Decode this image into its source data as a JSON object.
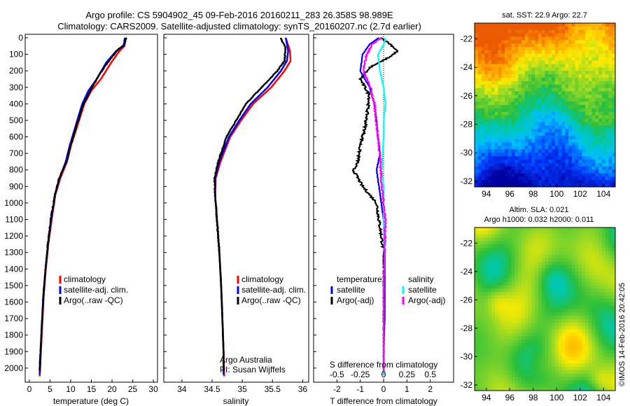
{
  "header": {
    "line1": "Argo profile: CS 5904902_45 09-Feb-2016 20160211_283 26.358S 98.989E",
    "line2": "Climatology: CARS2009. Satellite-adjusted climatology: synTS_20160207.nc (2.7d earlier)"
  },
  "colors": {
    "climatology": "#ff0000",
    "satellite": "#0000ff",
    "argo": "#000000",
    "sal_satellite": "#00ffff",
    "sal_argo": "#ff00ff"
  },
  "depth_ticks": [
    "0",
    "100",
    "200",
    "300",
    "400",
    "500",
    "600",
    "700",
    "800",
    "900",
    "1000",
    "1100",
    "1200",
    "1300",
    "1400",
    "1500",
    "1600",
    "1700",
    "1800",
    "1900",
    "2000"
  ],
  "chart_data": [
    {
      "type": "line",
      "xlabel": "temperature (deg C)",
      "ylabel": "",
      "xlim": [
        -1,
        31
      ],
      "ylim": [
        2060,
        0
      ],
      "xticks": [
        "0",
        "5",
        "10",
        "15",
        "20",
        "25",
        "30"
      ],
      "legend": [
        "climatology",
        "satellite-adj. clim.",
        "Argo(..raw -QC)"
      ],
      "series": [
        {
          "name": "climatology",
          "points": [
            [
              23.3,
              0
            ],
            [
              23.0,
              50
            ],
            [
              21.8,
              80
            ],
            [
              19.8,
              150
            ],
            [
              17.3,
              250
            ],
            [
              15.0,
              320
            ],
            [
              13.3,
              400
            ],
            [
              11.4,
              550
            ],
            [
              10.1,
              650
            ],
            [
              9.1,
              750
            ],
            [
              7.5,
              850
            ],
            [
              6.3,
              950
            ],
            [
              5.4,
              1100
            ],
            [
              4.6,
              1250
            ],
            [
              4.0,
              1400
            ],
            [
              3.5,
              1550
            ],
            [
              3.2,
              1700
            ],
            [
              2.9,
              1850
            ],
            [
              2.6,
              2000
            ],
            [
              2.5,
              2050
            ]
          ]
        },
        {
          "name": "satellite-adj. clim.",
          "points": [
            [
              23.1,
              0
            ],
            [
              22.8,
              50
            ],
            [
              21.0,
              80
            ],
            [
              18.6,
              150
            ],
            [
              16.3,
              250
            ],
            [
              14.3,
              320
            ],
            [
              12.8,
              400
            ],
            [
              11.0,
              550
            ],
            [
              9.8,
              650
            ],
            [
              8.8,
              750
            ],
            [
              7.3,
              850
            ],
            [
              6.2,
              950
            ],
            [
              5.3,
              1100
            ],
            [
              4.5,
              1250
            ],
            [
              3.9,
              1400
            ],
            [
              3.5,
              1550
            ],
            [
              3.1,
              1700
            ],
            [
              2.8,
              1850
            ],
            [
              2.6,
              2000
            ],
            [
              2.5,
              2040
            ]
          ]
        },
        {
          "name": "Argo(..raw -QC)",
          "points": [
            [
              23.4,
              0
            ],
            [
              23.0,
              40
            ],
            [
              21.5,
              70
            ],
            [
              19.5,
              130
            ],
            [
              17.0,
              220
            ],
            [
              15.2,
              300
            ],
            [
              13.1,
              400
            ],
            [
              11.2,
              550
            ],
            [
              10.0,
              650
            ],
            [
              9.0,
              750
            ],
            [
              7.2,
              850
            ],
            [
              6.2,
              950
            ],
            [
              5.2,
              1100
            ],
            [
              4.5,
              1250
            ],
            [
              3.9,
              1400
            ],
            [
              3.4,
              1550
            ],
            [
              3.1,
              1700
            ],
            [
              2.8,
              1850
            ],
            [
              2.5,
              2000
            ],
            [
              2.5,
              2020
            ]
          ]
        }
      ]
    },
    {
      "type": "line",
      "xlabel": "salinity",
      "ylabel": "",
      "xlim": [
        33.7,
        36.1
      ],
      "ylim": [
        2060,
        0
      ],
      "xticks": [
        "34",
        "34.5",
        "35",
        "35.5",
        "36"
      ],
      "legend": [
        "climatology",
        "satellite-adj. clim.",
        "Argo(..raw -QC)"
      ],
      "annotation": [
        "Argo Australia",
        "PI: Susan Wijffels"
      ],
      "series": [
        {
          "name": "climatology",
          "points": [
            [
              35.72,
              0
            ],
            [
              35.79,
              80
            ],
            [
              35.8,
              140
            ],
            [
              35.7,
              200
            ],
            [
              35.48,
              300
            ],
            [
              35.18,
              400
            ],
            [
              34.98,
              500
            ],
            [
              34.8,
              600
            ],
            [
              34.64,
              750
            ],
            [
              34.56,
              850
            ],
            [
              34.55,
              950
            ],
            [
              34.58,
              1100
            ],
            [
              34.62,
              1300
            ],
            [
              34.65,
              1500
            ],
            [
              34.67,
              1700
            ],
            [
              34.69,
              1900
            ],
            [
              34.7,
              2050
            ]
          ]
        },
        {
          "name": "satellite-adj. clim.",
          "points": [
            [
              35.72,
              0
            ],
            [
              35.76,
              80
            ],
            [
              35.74,
              140
            ],
            [
              35.64,
              200
            ],
            [
              35.42,
              300
            ],
            [
              35.14,
              400
            ],
            [
              34.95,
              500
            ],
            [
              34.78,
              600
            ],
            [
              34.62,
              750
            ],
            [
              34.55,
              850
            ],
            [
              34.55,
              950
            ],
            [
              34.58,
              1100
            ],
            [
              34.62,
              1300
            ],
            [
              34.65,
              1500
            ],
            [
              34.67,
              1700
            ],
            [
              34.69,
              1900
            ],
            [
              34.69,
              2040
            ]
          ]
        },
        {
          "name": "Argo(..raw -QC)",
          "points": [
            [
              35.63,
              0
            ],
            [
              35.72,
              60
            ],
            [
              35.7,
              140
            ],
            [
              35.58,
              200
            ],
            [
              35.32,
              300
            ],
            [
              35.06,
              400
            ],
            [
              34.9,
              500
            ],
            [
              34.74,
              600
            ],
            [
              34.6,
              750
            ],
            [
              34.54,
              850
            ],
            [
              34.55,
              950
            ],
            [
              34.58,
              1100
            ],
            [
              34.62,
              1300
            ],
            [
              34.65,
              1500
            ],
            [
              34.67,
              1700
            ],
            [
              34.69,
              1900
            ],
            [
              34.69,
              2020
            ]
          ]
        }
      ]
    },
    {
      "type": "line",
      "xlabel": "T difference from climatology",
      "ylabel": "",
      "xlim": [
        -3,
        3
      ],
      "ylim": [
        2060,
        0
      ],
      "xticks": [
        "-2",
        "-1",
        "0",
        "1",
        "2"
      ],
      "top_xlabel": "S difference from climatology",
      "top_xticks": [
        "-0.5",
        "-0.25",
        "0",
        "0.25",
        "0.5"
      ],
      "legend_groups": [
        {
          "title": "temperature",
          "items": [
            "satellite",
            "Argo(-adj)"
          ]
        },
        {
          "title": "salinity",
          "items": [
            "satellite",
            "Argo(-adj)"
          ]
        }
      ],
      "series": [
        {
          "name": "satellite",
          "group": "temperature",
          "points": [
            [
              -0.2,
              0
            ],
            [
              -0.6,
              40
            ],
            [
              -0.9,
              100
            ],
            [
              -1.0,
              200
            ],
            [
              -0.6,
              300
            ],
            [
              -0.4,
              400
            ],
            [
              -0.3,
              500
            ],
            [
              -0.25,
              600
            ],
            [
              -0.15,
              700
            ],
            [
              -0.3,
              800
            ],
            [
              -0.2,
              900
            ],
            [
              -0.1,
              1000
            ],
            [
              0.0,
              1100
            ],
            [
              0.05,
              1300
            ],
            [
              0.05,
              1500
            ],
            [
              0.05,
              1700
            ],
            [
              0.0,
              1900
            ],
            [
              0.0,
              2040
            ]
          ]
        },
        {
          "name": "Argo(-adj)",
          "group": "temperature",
          "points": [
            [
              -0.1,
              0
            ],
            [
              0.3,
              40
            ],
            [
              0.6,
              80
            ],
            [
              0.2,
              120
            ],
            [
              -0.6,
              180
            ],
            [
              -1.0,
              250
            ],
            [
              -0.8,
              300
            ],
            [
              -0.6,
              350
            ],
            [
              -0.7,
              450
            ],
            [
              -0.8,
              550
            ],
            [
              -1.0,
              650
            ],
            [
              -1.1,
              750
            ],
            [
              -1.3,
              800
            ],
            [
              -0.9,
              900
            ],
            [
              -0.3,
              1000
            ],
            [
              -0.2,
              1100
            ],
            [
              -0.1,
              1200
            ],
            [
              0.0,
              1300
            ],
            [
              0.0,
              1500
            ],
            [
              0.0,
              1700
            ],
            [
              0.0,
              1900
            ],
            [
              0.0,
              2020
            ]
          ]
        },
        {
          "name": "satellite",
          "group": "salinity",
          "points": [
            [
              0.02,
              0
            ],
            [
              0.0,
              40
            ],
            [
              -0.06,
              100
            ],
            [
              -0.04,
              200
            ],
            [
              0.0,
              300
            ],
            [
              0.02,
              400
            ],
            [
              0.0,
              500
            ],
            [
              0.0,
              600
            ],
            [
              -0.01,
              700
            ],
            [
              -0.02,
              800
            ],
            [
              0.0,
              900
            ],
            [
              0.0,
              1000
            ],
            [
              0.0,
              1100
            ],
            [
              0.01,
              1300
            ],
            [
              0.0,
              1500
            ],
            [
              0.0,
              1700
            ],
            [
              0.0,
              1900
            ],
            [
              0.0,
              2040
            ]
          ]
        },
        {
          "name": "Argo(-adj)",
          "group": "salinity",
          "points": [
            [
              -0.02,
              0
            ],
            [
              -0.12,
              40
            ],
            [
              -0.18,
              100
            ],
            [
              -0.22,
              200
            ],
            [
              -0.14,
              300
            ],
            [
              -0.1,
              400
            ],
            [
              -0.08,
              500
            ],
            [
              -0.06,
              600
            ],
            [
              -0.04,
              700
            ],
            [
              -0.03,
              800
            ],
            [
              -0.02,
              900
            ],
            [
              0.0,
              1000
            ],
            [
              0.02,
              1100
            ],
            [
              0.01,
              1300
            ],
            [
              0.0,
              1500
            ],
            [
              0.0,
              1700
            ],
            [
              0.0,
              1900
            ],
            [
              0.0,
              2020
            ]
          ]
        }
      ]
    },
    {
      "type": "heatmap",
      "title": "sat. SST: 22.9  Argo: 22.7",
      "xlim": [
        93,
        105
      ],
      "ylim": [
        -32.4,
        -20.9
      ],
      "xticks": [
        "94",
        "96",
        "98",
        "100",
        "102",
        "104"
      ],
      "yticks": [
        "-22",
        "-24",
        "-26",
        "-28",
        "-30",
        "-32"
      ]
    },
    {
      "type": "heatmap",
      "title": [
        "Altim. SLA: 0.021",
        "Argo h1000: 0.032 h2000: 0.011"
      ],
      "xlim": [
        93,
        105
      ],
      "ylim": [
        -32.4,
        -20.9
      ],
      "xticks": [
        "94",
        "96",
        "98",
        "100",
        "102",
        "104"
      ],
      "yticks": [
        "-22",
        "-24",
        "-26",
        "-28",
        "-30",
        "-32"
      ]
    }
  ],
  "footer": {
    "stamp": "©IMOS 14-Feb-2016 20:42:05"
  }
}
